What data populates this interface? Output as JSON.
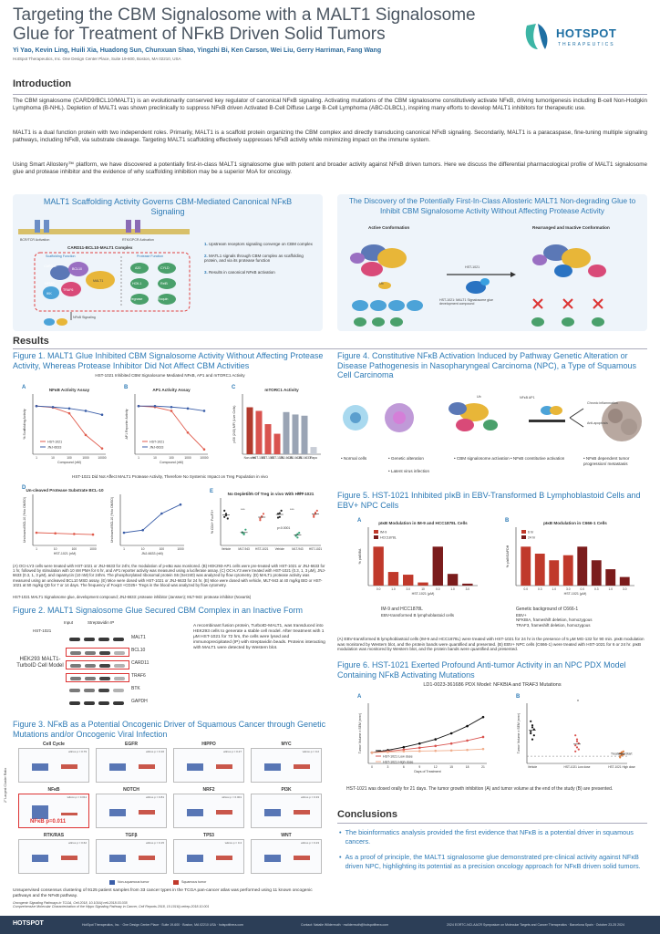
{
  "header": {
    "title": "Targeting the CBM Signalosome with a MALT1 Signalosome Glue for Treatment of NFκB Driven Solid Tumors",
    "authors": "Yi Yao, Kevin Ling, Huili Xia, Huadong Sun, Chunxuan Shao, Yingzhi Bi, Ken Carson, Wei Liu, Gerry Harriman, Fang Wang",
    "affiliation": "HotSpot Therapeutics, Inc. One Design Center Place, Suite 19-600, Boston, MA 02210, USA",
    "logo_text": "HOTSPOT",
    "logo_sub": "THERAPEUTICS"
  },
  "intro": {
    "heading": "Introduction",
    "p1": "The CBM signalosome (CARD9/BCL10/MALT1) is an evolutionarily conserved key regulator of canonical NFκB signaling. Activating mutations of the CBM signalosome constitutively activate NFκB, driving tumorigenesis including B-cell Non-Hodgkin Lymphoma (B-NHL). Depletion of MALT1 was shown preclinically to suppress NFκB driven Activated B-Cell Diffuse Large B-Cell Lymphoma (ABC-DLBCL), inspiring many efforts to develop MALT1 inhibitors for therapeutic use.",
    "p2": "MALT1 is a dual function protein with two independent roles. Primarily, MALT1 is a scaffold protein organizing the CBM complex and directly transducing canonical NFκB signaling. Secondarily, MALT1 is a paracaspase, fine-tuning multiple signaling pathways, including NFκB, via substrate cleavage. Targeting MALT1 scaffolding effectively suppresses NFκB activity while minimizing impact on the immune system.",
    "p3": "Using Smart Allostery™ platform, we have discovered a potentially first-in-class MALT1 signalosome glue with potent and broader activity against NFκB driven tumors. Here we discuss the differential pharmacological profile of MALT1 signalosome glue and protease inhibitor and the evidence of why scaffolding inhibition may be a superior MoA for oncology."
  },
  "scaffold_panel": {
    "title": "MALT1 Scaffolding Activity Governs CBM-Mediated Canonical NFκB Signaling",
    "bcr_label": "BCR/TCR Activation",
    "rtk_label": "RTK/GPCR Activation",
    "complex_label": "CARD11-BCL10-MALT1 Complex",
    "scaffold_fn": "Scaffolding Function",
    "protease_fn": "Protease Function",
    "nfkb_label": "NFκB Signaling",
    "steps": [
      "Upstream receptors signaling converge on CBM complex",
      "MATL1 signals through CBM complex as scaffolding protein, and via its protease function",
      "Results in canonical NFκB activation"
    ],
    "nodes_left": [
      "CARD11",
      "BCL10",
      "MALT1",
      "TRAF6",
      "IKK",
      "NEMO"
    ],
    "nodes_right": [
      "A20",
      "CYLD",
      "HOIL1",
      "RelB",
      "Regnase",
      "Roquin"
    ]
  },
  "discovery_panel": {
    "title": "The Discovery of the Potentially First-In-Class Allosteric MALT1 Non-degrading Glue to Inhibit CBM Signalosome Activity Without Affecting Protease Activity",
    "active": "Active Conformation",
    "inactive": "Rearranged and Inactive Conformation",
    "compound": "HST-1021",
    "caption": "HST-1021: MALT1 Signalosome glue development compound",
    "ub": "Ub"
  },
  "results_heading": "Results",
  "fig1": {
    "title": "Figure 1. MALT1 Glue Inhibited CBM Signalosome Activity Without Affecting Protease Activity, Whereas Protease Inhibitor Did Not Affect CBM Activities",
    "subtitle1": "HST-1021 Inhibited CBM Signalosome Mediated NFκB, AP1 and mTORC1 Activity",
    "subtitle2": "HST-1021 Did Not Affect MALT1 Protease Activity, Therefore No Systemic Impact on Treg Population in vivo",
    "caption": "(A) OCI-LY3 cells were treated with HST-1021 or JNJ-6633 for 24hr, the modulation of p-κBα was monitored. (B) HEK293-AP1 cells were pre-treated with HST-1021 or JNJ-6633 for 1 hr, followed by stimulation with 10 nM PMA for 6 hr, and AP1 reporter activity was measured using a luciferase assay. (C) OCI-LY3 were treated with HST-1021 (0.3, 1, 3 μM), JNJ-6633 (0.3, 1, 3 μM), and rapamycin (10 nM) for 24hrs. The phosphorylated ribosomal protein S6 (Ser240) was analyzed by flow cytometry. (D) MALT1 protease activity was measured using an uncleaved BCL10 MSD assay. (E) Mice were dosed with HST-1021 or JNJ-6633 for 24 hr. (E) Mice were dosed with vehicle, MLT-943 at 40 mg/kg BID or HST-1021 at 50 mg/kg QD for 7 or 14 days. The frequency of Foxp3 +CD25+ Tregs in the blood was analyzed by flow cytometry.",
    "caption2": "HST-1021 MALT1 Signalosome glue, development compound; JNJ-6633: protease inhibitor (Janssen); MLT-943: protease inhibitor (Novartis)"
  },
  "fig1_charts": [
    {
      "type": "line",
      "letter": "A",
      "title": "NFκB Activity Assay",
      "xlabel": "Compound (nM)",
      "ylabel": "% Scaffolding Activity",
      "x": [
        1,
        10,
        100,
        1000,
        10000
      ],
      "ylim": [
        0,
        125
      ],
      "series": [
        {
          "name": "HST-1021",
          "values": [
            100,
            97,
            85,
            40,
            12
          ],
          "color": "#e05b4c"
        },
        {
          "name": "JNJ-6633",
          "values": [
            100,
            98,
            95,
            90,
            82
          ],
          "color": "#3b5ea8"
        }
      ]
    },
    {
      "type": "line",
      "letter": "B",
      "title": "AP1 Activity Assay",
      "xlabel": "Compound (nM)",
      "ylabel": "AP1 Reporter Activity",
      "x": [
        1,
        10,
        100,
        1000,
        10000
      ],
      "ylim": [
        0,
        125
      ],
      "series": [
        {
          "name": "HST-1021",
          "values": [
            100,
            98,
            90,
            45,
            10
          ],
          "color": "#e05b4c"
        },
        {
          "name": "JNJ-6633",
          "values": [
            100,
            100,
            98,
            95,
            90
          ],
          "color": "#3b5ea8"
        }
      ]
    },
    {
      "type": "bar",
      "letter": "C",
      "title": "mTORC1 Activity",
      "ylabel": "pS6 (240) MFI (Live Cells)",
      "categories": [
        "Non-stim",
        "HST-1021",
        "HST-1021",
        "HST-1021",
        "JNJ-6633",
        "JNJ-6633",
        "JNJ-6633",
        "Rapa"
      ],
      "values": [
        3900,
        3600,
        2500,
        1700,
        3500,
        3300,
        3200,
        600
      ],
      "colors": [
        "#b23b2e",
        "#d9534f",
        "#d9534f",
        "#d9534f",
        "#9aa4b4",
        "#9aa4b4",
        "#9aa4b4",
        "#c8cdd6"
      ],
      "ylim": [
        0,
        5000
      ]
    },
    {
      "type": "line",
      "letter": "D",
      "title": "Un-cleaved Protease Substrate BCL-10",
      "xlabel1": "HST-1021 (nM)",
      "xlabel2": "JNJ-6633 (nM)",
      "ylabel": "Uncleaved BCL10 (% to DMSO)",
      "x": [
        1,
        10,
        100,
        1000
      ],
      "ylim": [
        0,
        400
      ],
      "series": [
        {
          "name": "HST-1021",
          "values": [
            100,
            95,
            90,
            85
          ],
          "color": "#e05b4c"
        },
        {
          "name": "JNJ-6633",
          "values": [
            100,
            120,
            250,
            320
          ],
          "color": "#3b5ea8"
        }
      ]
    },
    {
      "type": "scatter",
      "letter": "E",
      "title": "No Depletion Of Treg in vivo With HST-1021",
      "ylabel": "% CD4+ FoxP3+",
      "group_labels": [
        "7d",
        "14d"
      ],
      "ylim": [
        0,
        15
      ],
      "groups": [
        {
          "name": "Vehicle",
          "values": [
            9,
            10,
            8.5,
            11,
            9.5
          ],
          "color": "#222"
        },
        {
          "name": "MLT-943",
          "values": [
            4,
            3.5,
            5,
            4.2,
            3.8
          ],
          "color": "#3aa57a"
        },
        {
          "name": "HST-1021",
          "values": [
            8,
            9,
            10,
            8.5,
            9.2
          ],
          "color": "#e05b4c"
        },
        {
          "name": "Vehicle",
          "values": [
            10,
            9,
            11,
            8.8,
            10.2
          ],
          "color": "#222"
        },
        {
          "name": "MLT-943",
          "values": [
            3,
            2.5,
            4,
            3.2,
            3.6
          ],
          "color": "#3aa57a"
        },
        {
          "name": "HST-1021",
          "values": [
            9,
            10,
            11,
            9.5,
            10.4
          ],
          "color": "#e05b4c"
        }
      ],
      "annotations": [
        "***",
        "***",
        "p<0.0001"
      ]
    }
  ],
  "fig2": {
    "title": "Figure 2. MALT1 Signalosome Glue Secured CBM Complex in an Inactive Form",
    "input": "Input",
    "ip": "Streptavidin IP",
    "compound": "HST-1021",
    "model": "HEK293 MALT1-TurboID Cell Model",
    "bands": [
      "MALT1",
      "BCL10",
      "CARD11",
      "TRAF6",
      "BTK",
      "GAPDH"
    ],
    "caption": "A recombinant fusion protein, TurboID-MALT1, was transduced into HEK293 cells to generate a stable cell model. After treatment with 1 μM HST-1021 for 72 hrs, the cells were lysed and immunoprecipitated (IP) with streptavidin beads. Proteins interacting with MALT1 were detected by Western blot."
  },
  "fig3": {
    "title": "Figure 3. NFκB as a Potential Oncogenic Driver of Squamous Cancer through Genetic Mutations and/or Oncogenic Viral Infection",
    "ylabel": "2° Largest Cluster Ratio",
    "panels": [
      "Cell Cycle",
      "EGFR",
      "HIPPO",
      "MYC",
      "NFκB",
      "NOTCH",
      "NRF2",
      "PI3K",
      "RTK/RAS",
      "TGFβ",
      "TP53",
      "WNT"
    ],
    "pvals": [
      "wilcox.p = 0.79",
      "wilcox.p = 0.16",
      "wilcox.p = 0.27",
      "wilcox.p = 0.2",
      "wilcox.p = 0.011",
      "wilcox.p = 0.81",
      "wilcox.p = 0.001",
      "wilcox.p = 0.33",
      "wilcox.p = 0.62",
      "wilcox.p = 0.15",
      "wilcox.p = 0.4",
      "wilcox.p = 0.23"
    ],
    "callout": "NFκB p=0.011",
    "legend": [
      "Non-squamous tumor",
      "Squamous tumor"
    ],
    "caption": "Unsupervised consensus clustering of 9125 patient samples from 33 cancer types in the TCGA pan-cancer atlas was performed using 11 known oncogenic pathways and the NFκB pathway.",
    "refs": "Oncogenic Signaling Pathways in TCGA, Cell 2018, 10.1016/j.cell.2018.03.035\nComprehensive Molecular Characterization of the Hippo Signaling Pathway in Cancer, Cell Reports 2018, 10.1016/j.celrep.2018.10.001"
  },
  "fig4": {
    "title": "Figure 4. Constitutive NFκB Activation Induced by Pathway Genetic Alteration or Disease Pathogenesis in Nasopharyngeal Carcinoma (NPC), a Type of Squamous Cell Carcinoma",
    "labels": [
      "Normal cells",
      "Genetic alteration",
      "Latent virus infection",
      "CBM signalosome activation",
      "NFκB constitutive activation",
      "NFκB dependent tumor progression/ metastasis"
    ],
    "chronic": "Chronic inflammation",
    "anti": "Anti-apoptosis",
    "nfkb_ap1": "NFκB AP1",
    "ub": "Ub"
  },
  "fig5": {
    "title": "Figure 5. HST-1021 Inhibited pIκB in EBV-Transformed B Lymphoblastoid Cells and EBV+ NPC Cells",
    "caption": "(A) EBV-transformed B lymphoblastoid cells (IM-9 and HCC1878L) were treated with HST-1021 for 24 hr in the presence of 5 μM MG-132 for 90 min. pIκB modulation was monitored by Western blot, and the protein bands were quantified and presented. (B) EBV+ NPC cells (C666-1) were treated with HST-1021 for 6 or 24 hr. pIκB modulation was monitored by Western blot, and the protein bands were quantified and presented.",
    "noteA_title": "IM-9 and HCC1878L",
    "noteA": "EBV-transformed B lymphoblastoid cells",
    "noteB_title": "Genetic background of C666-1",
    "noteB": [
      "EBV+",
      "NFKBIA, frameshift deletion, homozygous",
      "TRAF3, frameshift deletion, homozygous"
    ]
  },
  "fig5_charts": [
    {
      "type": "bar",
      "letter": "A",
      "title": "pIκB Modulation in IM-9 and HCC1878L Cells",
      "xlabel": "HST-1021 (μM)",
      "ylabel": "% pIκB/BA",
      "categories": [
        "0.0",
        "1.0",
        "3.0",
        "10",
        "0.0",
        "1.0",
        "3.0"
      ],
      "values": [
        100,
        35,
        28,
        8,
        100,
        30,
        5
      ],
      "colors": [
        "#c0392b",
        "#c0392b",
        "#c0392b",
        "#c0392b",
        "#7b1c1c",
        "#7b1c1c",
        "#7b1c1c"
      ],
      "legend": [
        {
          "name": "IM-9",
          "color": "#c0392b"
        },
        {
          "name": "HCC1878L",
          "color": "#7b1c1c"
        }
      ],
      "ylim": [
        0,
        150
      ]
    },
    {
      "type": "bar",
      "letter": "B",
      "title": "pIκB Modulation in C666-1 Cells",
      "xlabel": "HST-1021 (μM)",
      "ylabel": "% pIκB/GAPDH",
      "categories": [
        "0.0",
        "0.3",
        "1.0",
        "3.0",
        "0.0",
        "0.3",
        "1.0",
        "3.0"
      ],
      "values": [
        100,
        82,
        65,
        78,
        100,
        65,
        42,
        22
      ],
      "colors": [
        "#c0392b",
        "#c0392b",
        "#c0392b",
        "#c0392b",
        "#7b1c1c",
        "#7b1c1c",
        "#7b1c1c",
        "#7b1c1c"
      ],
      "legend": [
        {
          "name": "6 hr",
          "color": "#c0392b"
        },
        {
          "name": "24 hr",
          "color": "#7b1c1c"
        }
      ],
      "ylim": [
        0,
        150
      ]
    }
  ],
  "fig6": {
    "title": "Figure 6. HST-1021 Exerted Profound Anti-tumor Activity in an NPC PDX Model Containing NFκB Activating Mutations",
    "model": "LD1-0023-361686 PDX Model: NFKBIA and TRAF3 Mutations",
    "caption": "HST-1021 was dosed orally for 21 days. The tumor growth inhibition (A) and tumor volume at the end of the study (B) are presented.",
    "treatment_start": "Treatment Start"
  },
  "fig6_charts": [
    {
      "type": "line",
      "letter": "A",
      "xlabel": "Days of Treatment",
      "ylabel": "Tumor Volume ± SEM (mm³)",
      "x": [
        0,
        3,
        6,
        9,
        12,
        15,
        18,
        21
      ],
      "ylim": [
        0,
        1000
      ],
      "series": [
        {
          "name": "Vehicle",
          "values": [
            180,
            220,
            270,
            330,
            400,
            500,
            620,
            770
          ],
          "color": "#111"
        },
        {
          "name": "HST-1021 Low dose",
          "values": [
            180,
            200,
            230,
            260,
            290,
            330,
            380,
            440
          ],
          "color": "#d9534f"
        },
        {
          "name": "HST-1021 High dose",
          "values": [
            180,
            190,
            200,
            205,
            210,
            215,
            225,
            240
          ],
          "color": "#f0ad8c"
        }
      ]
    },
    {
      "type": "scatter",
      "letter": "B",
      "ylabel": "Tumor Volume ± SEM (mm³)",
      "categories": [
        "Vehicle",
        "HST-1021 Low dose",
        "HST-1021 High dose"
      ],
      "ylim": [
        0,
        1500
      ],
      "groups": [
        {
          "name": "Vehicle",
          "values": [
            800,
            950,
            700,
            1050,
            600,
            850,
            750,
            900
          ],
          "color": "#111"
        },
        {
          "name": "HST-1021 Low dose",
          "values": [
            450,
            600,
            350,
            700,
            400,
            500,
            300,
            550
          ],
          "color": "#d9534f"
        },
        {
          "name": "HST-1021 High dose",
          "values": [
            250,
            200,
            300,
            150,
            280,
            220,
            180,
            260
          ],
          "color": "#e07b39"
        }
      ],
      "annotation": "*"
    }
  ],
  "conclusions": {
    "heading": "Conclusions",
    "items": [
      "The bioinformatics analysis provided the first evidence that NFκB is a potential driver in squamous cancers.",
      "As a proof of principle, the MALT1 signalosome glue demonstrated pre-clinical activity against NFκB driven NPC, highlighting its potential as a precision oncology approach for NFκB driven solid tumors."
    ]
  },
  "footer": {
    "logo": "HOTSPOT",
    "address": "HotSpot Therapeutics, Inc. · One Design Center Place · Suite 19-600 · Boston, MA 02210 USA · hotspotthera.com",
    "contact": "Contact: Natalie Wildermuth · nwildermuth@hotspotthera.com",
    "meeting": "2024 EORTC-NCI-AACR Symposium on Molecular Targets and Cancer Therapeutics · Barcelona Spain · October 23-25 2024"
  }
}
